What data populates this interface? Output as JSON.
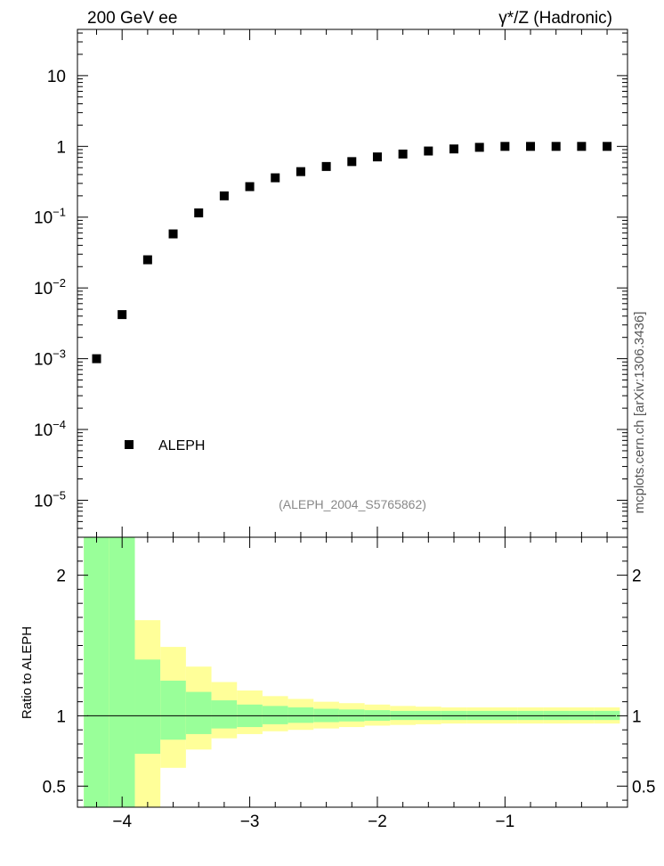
{
  "header": {
    "left_title": "200 GeV ee",
    "right_title": "γ*/Z (Hadronic)"
  },
  "side_label": "mcplots.cern.ch [arXiv:1306.3436]",
  "analysis_id": "(ALEPH_2004_S5765862)",
  "colors": {
    "markers": "#000000",
    "band_inner": "#99ff99",
    "band_outer": "#ffff99",
    "reference_line": "#000000",
    "analysis_text": "#888888"
  },
  "chart_data": [
    {
      "type": "scatter",
      "panel": "main",
      "y_scale": "log",
      "xlim": [
        -4.35,
        -0.04
      ],
      "ylim": [
        3e-06,
        45
      ],
      "y_ticks": [
        {
          "value": 10,
          "base": "10",
          "exp": ""
        },
        {
          "value": 1,
          "base": "1",
          "exp": ""
        },
        {
          "value": 0.1,
          "base": "10",
          "exp": "−1"
        },
        {
          "value": 0.01,
          "base": "10",
          "exp": "−2"
        },
        {
          "value": 0.001,
          "base": "10",
          "exp": "−3"
        },
        {
          "value": 0.0001,
          "base": "10",
          "exp": "−4"
        },
        {
          "value": 1e-05,
          "base": "10",
          "exp": "−5"
        }
      ],
      "legend": {
        "position": "bottom-left",
        "entries": [
          "ALEPH"
        ]
      },
      "series": [
        {
          "name": "ALEPH",
          "marker": "square",
          "x": [
            -4.2,
            -4.0,
            -3.8,
            -3.6,
            -3.4,
            -3.2,
            -3.0,
            -2.8,
            -2.6,
            -2.4,
            -2.2,
            -2.0,
            -1.8,
            -1.6,
            -1.4,
            -1.2,
            -1.0,
            -0.8,
            -0.6,
            -0.4,
            -0.2
          ],
          "y": [
            0.001,
            0.0042,
            0.025,
            0.058,
            0.115,
            0.2,
            0.27,
            0.36,
            0.44,
            0.52,
            0.61,
            0.71,
            0.78,
            0.86,
            0.92,
            0.97,
            1.0,
            1.0,
            1.0,
            1.0,
            1.0
          ]
        }
      ]
    },
    {
      "type": "area",
      "panel": "ratio",
      "xlim": [
        -4.35,
        -0.04
      ],
      "ylim": [
        0.35,
        2.27
      ],
      "ylabel": "Ratio to ALEPH",
      "x_ticks": [
        -4,
        -3,
        -2,
        -1
      ],
      "x_tick_labels": [
        "−4",
        "−3",
        "−2",
        "−1"
      ],
      "y_ticks": [
        0.5,
        1,
        2
      ],
      "y_tick_labels": [
        "0.5",
        "1",
        "2"
      ],
      "reference_line": 1,
      "bins": [
        {
          "x0": -4.3,
          "x1": -4.1,
          "inner_lo": 0.35,
          "inner_hi": 2.27,
          "outer_lo": 0.35,
          "outer_hi": 2.27
        },
        {
          "x0": -4.1,
          "x1": -3.9,
          "inner_lo": 0.35,
          "inner_hi": 2.27,
          "outer_lo": 0.35,
          "outer_hi": 2.27
        },
        {
          "x0": -3.9,
          "x1": -3.7,
          "inner_lo": 0.73,
          "inner_hi": 1.4,
          "outer_lo": 0.35,
          "outer_hi": 1.68
        },
        {
          "x0": -3.7,
          "x1": -3.5,
          "inner_lo": 0.83,
          "inner_hi": 1.25,
          "outer_lo": 0.63,
          "outer_hi": 1.49
        },
        {
          "x0": -3.5,
          "x1": -3.3,
          "inner_lo": 0.87,
          "inner_hi": 1.17,
          "outer_lo": 0.76,
          "outer_hi": 1.35
        },
        {
          "x0": -3.3,
          "x1": -3.1,
          "inner_lo": 0.91,
          "inner_hi": 1.11,
          "outer_lo": 0.84,
          "outer_hi": 1.24
        },
        {
          "x0": -3.1,
          "x1": -2.9,
          "inner_lo": 0.92,
          "inner_hi": 1.08,
          "outer_lo": 0.87,
          "outer_hi": 1.18
        },
        {
          "x0": -2.9,
          "x1": -2.7,
          "inner_lo": 0.94,
          "inner_hi": 1.07,
          "outer_lo": 0.89,
          "outer_hi": 1.14
        },
        {
          "x0": -2.7,
          "x1": -2.5,
          "inner_lo": 0.95,
          "inner_hi": 1.06,
          "outer_lo": 0.9,
          "outer_hi": 1.12
        },
        {
          "x0": -2.5,
          "x1": -2.3,
          "inner_lo": 0.955,
          "inner_hi": 1.05,
          "outer_lo": 0.91,
          "outer_hi": 1.1
        },
        {
          "x0": -2.3,
          "x1": -2.1,
          "inner_lo": 0.96,
          "inner_hi": 1.045,
          "outer_lo": 0.92,
          "outer_hi": 1.09
        },
        {
          "x0": -2.1,
          "x1": -1.9,
          "inner_lo": 0.965,
          "inner_hi": 1.04,
          "outer_lo": 0.93,
          "outer_hi": 1.08
        },
        {
          "x0": -1.9,
          "x1": -1.7,
          "inner_lo": 0.97,
          "inner_hi": 1.035,
          "outer_lo": 0.935,
          "outer_hi": 1.07
        },
        {
          "x0": -1.7,
          "x1": -1.5,
          "inner_lo": 0.97,
          "inner_hi": 1.035,
          "outer_lo": 0.94,
          "outer_hi": 1.065
        },
        {
          "x0": -1.5,
          "x1": -1.3,
          "inner_lo": 0.97,
          "inner_hi": 1.035,
          "outer_lo": 0.945,
          "outer_hi": 1.06
        },
        {
          "x0": -1.3,
          "x1": -1.1,
          "inner_lo": 0.97,
          "inner_hi": 1.035,
          "outer_lo": 0.945,
          "outer_hi": 1.06
        },
        {
          "x0": -1.1,
          "x1": -0.9,
          "inner_lo": 0.97,
          "inner_hi": 1.035,
          "outer_lo": 0.945,
          "outer_hi": 1.06
        },
        {
          "x0": -0.9,
          "x1": -0.7,
          "inner_lo": 0.97,
          "inner_hi": 1.035,
          "outer_lo": 0.945,
          "outer_hi": 1.06
        },
        {
          "x0": -0.7,
          "x1": -0.5,
          "inner_lo": 0.97,
          "inner_hi": 1.035,
          "outer_lo": 0.945,
          "outer_hi": 1.06
        },
        {
          "x0": -0.5,
          "x1": -0.3,
          "inner_lo": 0.97,
          "inner_hi": 1.035,
          "outer_lo": 0.945,
          "outer_hi": 1.06
        },
        {
          "x0": -0.3,
          "x1": -0.1,
          "inner_lo": 0.97,
          "inner_hi": 1.035,
          "outer_lo": 0.945,
          "outer_hi": 1.06
        }
      ]
    }
  ]
}
